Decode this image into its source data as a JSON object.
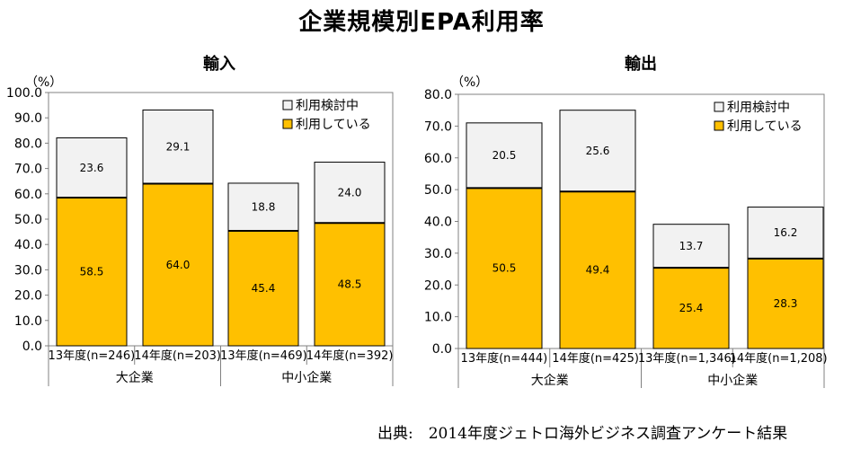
{
  "title": "企業規模別EPA利用率",
  "source": "出典:　2014年度ジェトロ海外ビジネス調査アンケート結果",
  "colors": {
    "used": "#FFC000",
    "considering": "#F2F2F2",
    "border": "#000000",
    "grid": "#808080"
  },
  "chart_data": [
    {
      "type": "bar",
      "stacked": true,
      "title": "輸入",
      "unit_label": "（%）",
      "ylim": [
        0,
        100
      ],
      "yticks": [
        "0.0",
        "10.0",
        "20.0",
        "30.0",
        "40.0",
        "50.0",
        "60.0",
        "70.0",
        "80.0",
        "90.0",
        "100.0"
      ],
      "categories": [
        "13年度(n=246)",
        "14年度(n=203)",
        "13年度(n=469)",
        "14年度(n=392)"
      ],
      "groups": [
        {
          "label": "大企業",
          "categories": [
            0,
            1
          ]
        },
        {
          "label": "中小企業",
          "categories": [
            2,
            3
          ]
        }
      ],
      "series": [
        {
          "name": "利用している",
          "values": [
            58.5,
            64.0,
            45.4,
            48.5
          ],
          "labels": [
            "58.5",
            "64.0",
            "45.4",
            "48.5"
          ]
        },
        {
          "name": "利用検討中",
          "values": [
            23.6,
            29.1,
            18.8,
            24.0
          ],
          "labels": [
            "23.6",
            "29.1",
            "18.8",
            "24.0"
          ]
        }
      ],
      "legend": "top-right",
      "grid": false
    },
    {
      "type": "bar",
      "stacked": true,
      "title": "輸出",
      "unit_label": "（%）",
      "ylim": [
        0,
        80
      ],
      "yticks": [
        "0.0",
        "10.0",
        "20.0",
        "30.0",
        "40.0",
        "50.0",
        "60.0",
        "70.0",
        "80.0"
      ],
      "categories": [
        "13年度(n=444)",
        "14年度(n=425)",
        "13年度(n=1,346)",
        "14年度(n=1,208)"
      ],
      "groups": [
        {
          "label": "大企業",
          "categories": [
            0,
            1
          ]
        },
        {
          "label": "中小企業",
          "categories": [
            2,
            3
          ]
        }
      ],
      "series": [
        {
          "name": "利用している",
          "values": [
            50.5,
            49.4,
            25.4,
            28.3
          ],
          "labels": [
            "50.5",
            "49.4",
            "25.4",
            "28.3"
          ]
        },
        {
          "name": "利用検討中",
          "values": [
            20.5,
            25.6,
            13.7,
            16.2
          ],
          "labels": [
            "20.5",
            "25.6",
            "13.7",
            "16.2"
          ]
        }
      ],
      "legend": "top-right",
      "grid": false
    }
  ]
}
